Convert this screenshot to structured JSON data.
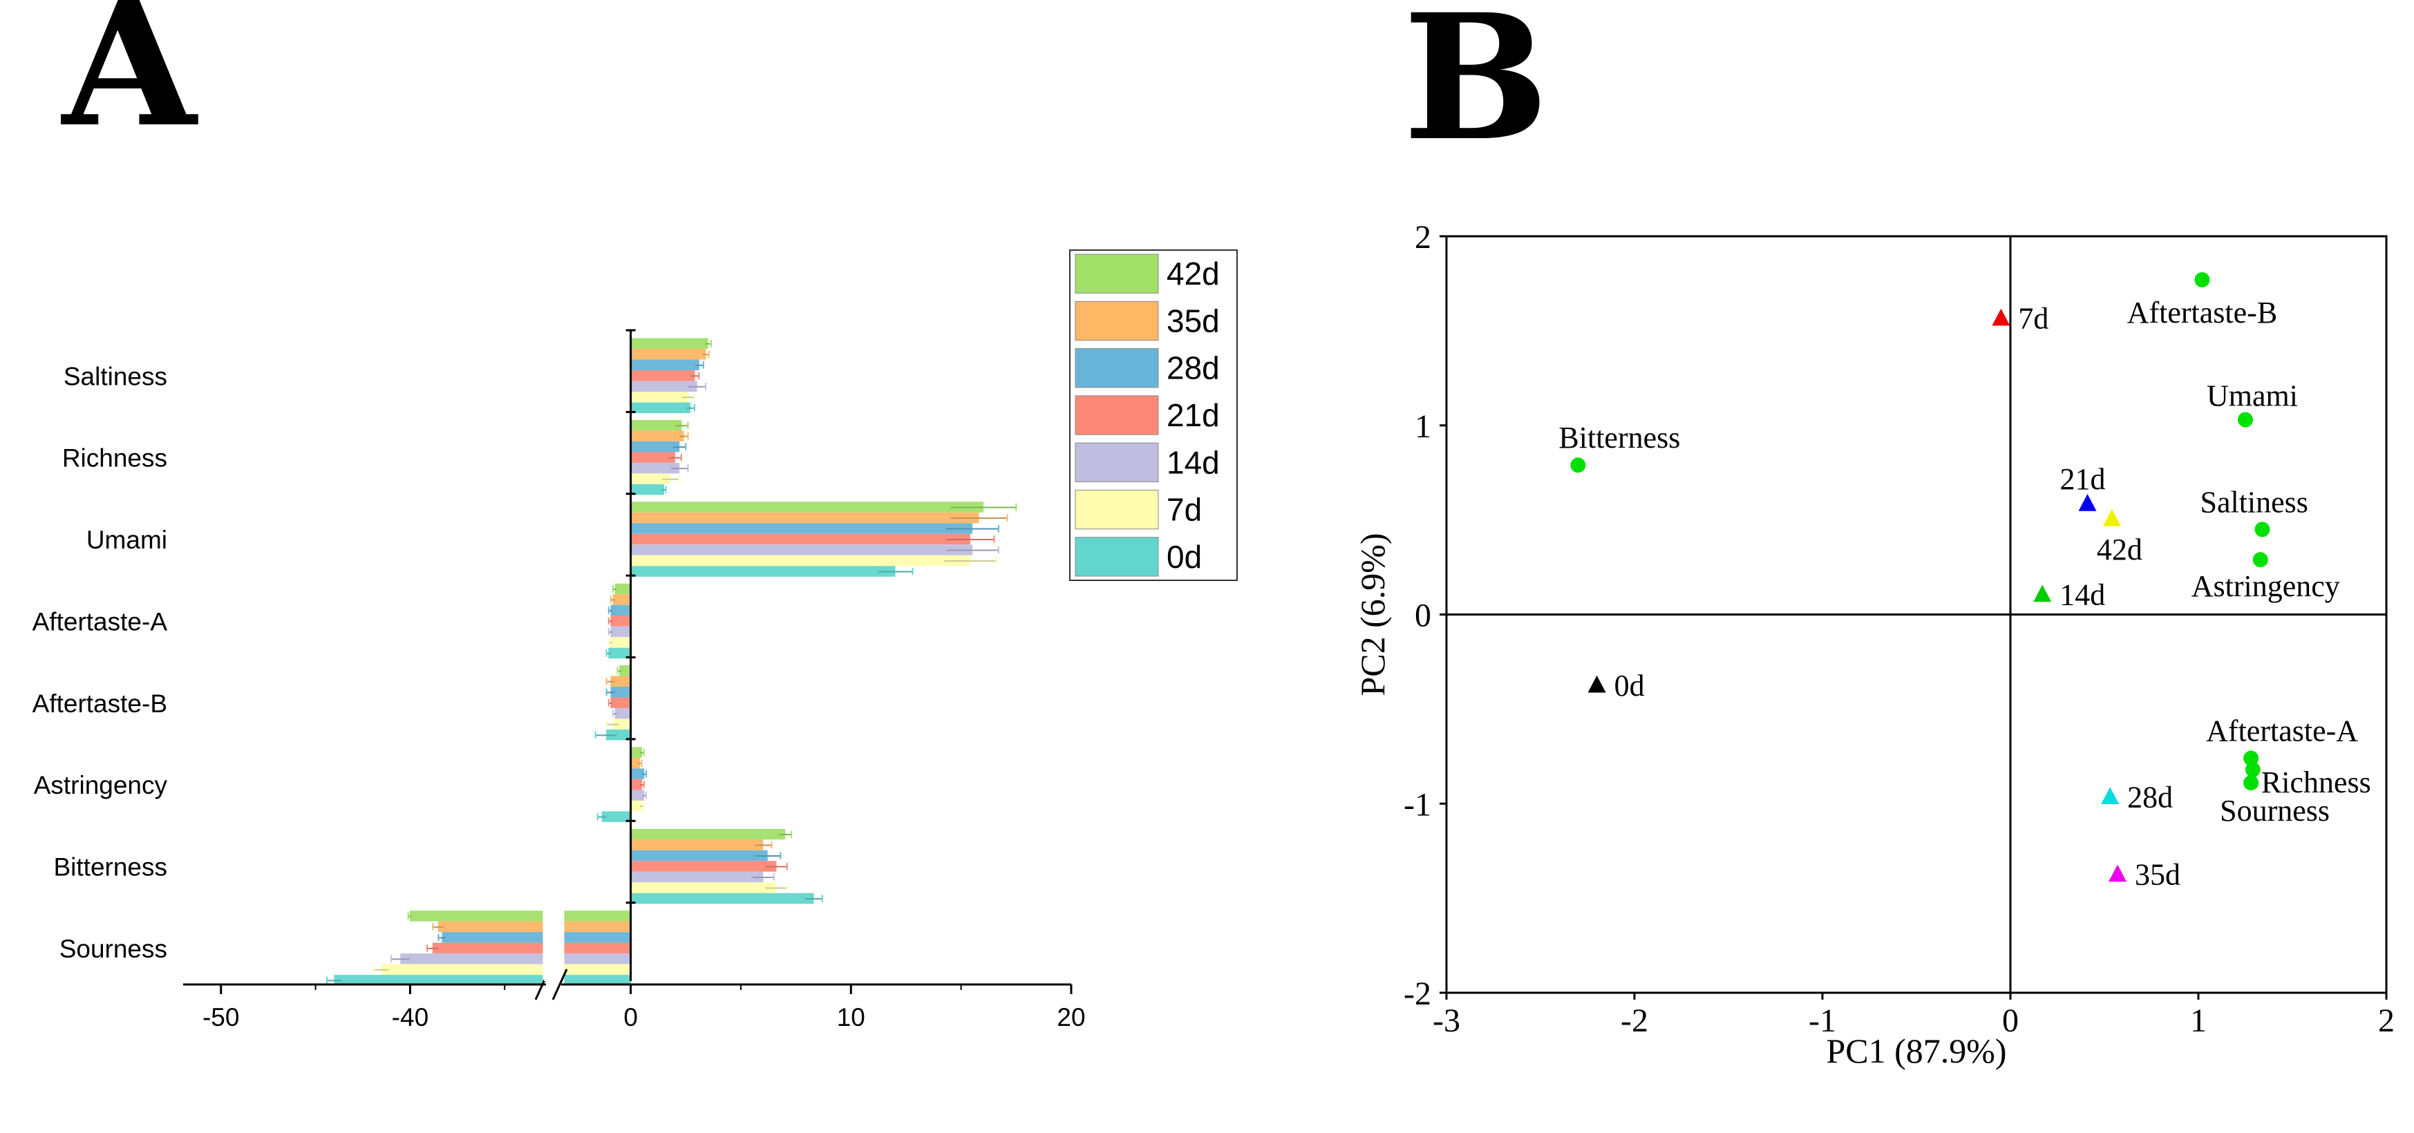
{
  "panels": {
    "a": {
      "letter": "A"
    },
    "b": {
      "letter": "B"
    }
  },
  "colors": {
    "0d": "#62d6cd",
    "7d": "#fffdb0",
    "14d": "#c0bee0",
    "21d": "#fc8878",
    "28d": "#67b5d9",
    "35d": "#fdb765",
    "42d": "#a2e06a",
    "marker_green": "#00e000"
  },
  "chart_data": [
    {
      "type": "bar",
      "orientation": "horizontal",
      "title": "",
      "categories": [
        "Saltiness",
        "Richness",
        "Umami",
        "Aftertaste-A",
        "Aftertaste-B",
        "Astringency",
        "Bitterness",
        "Sourness"
      ],
      "series": [
        {
          "name": "42d",
          "values": [
            3.5,
            2.3,
            16.0,
            -0.7,
            -0.5,
            0.5,
            7.0,
            -40.0
          ],
          "errors": [
            0.15,
            0.3,
            1.5,
            0.1,
            0.1,
            0.1,
            0.3,
            0.1
          ]
        },
        {
          "name": "35d",
          "values": [
            3.4,
            2.4,
            15.8,
            -0.8,
            -0.9,
            0.4,
            6.0,
            -38.5
          ],
          "errors": [
            0.15,
            0.2,
            1.3,
            0.1,
            0.2,
            0.1,
            0.4,
            0.3
          ]
        },
        {
          "name": "28d",
          "values": [
            3.1,
            2.2,
            15.5,
            -0.9,
            -0.9,
            0.6,
            6.2,
            -38.3
          ],
          "errors": [
            0.2,
            0.3,
            1.2,
            0.1,
            0.2,
            0.1,
            0.6,
            0.2
          ]
        },
        {
          "name": "21d",
          "values": [
            2.9,
            2.0,
            15.4,
            -0.9,
            -0.9,
            0.5,
            6.6,
            -38.8
          ],
          "errors": [
            0.2,
            0.3,
            1.1,
            0.1,
            0.1,
            0.1,
            0.5,
            0.3
          ]
        },
        {
          "name": "14d",
          "values": [
            3.0,
            2.2,
            15.5,
            -0.9,
            -0.7,
            0.6,
            6.0,
            -40.5
          ],
          "errors": [
            0.4,
            0.4,
            1.2,
            0.1,
            0.1,
            0.1,
            0.5,
            0.5
          ]
        },
        {
          "name": "7d",
          "values": [
            2.6,
            1.8,
            15.4,
            -0.9,
            -0.8,
            0.5,
            6.6,
            -41.5
          ],
          "errors": [
            0.3,
            0.4,
            1.2,
            0.1,
            0.3,
            0.1,
            0.5,
            0.4
          ]
        },
        {
          "name": "0d",
          "values": [
            2.7,
            1.5,
            12.0,
            -1.0,
            -1.1,
            -1.3,
            8.3,
            -44.0
          ],
          "errors": [
            0.2,
            0.1,
            0.8,
            0.1,
            0.5,
            0.2,
            0.4,
            0.4
          ]
        }
      ],
      "xlim": [
        -52,
        20
      ],
      "axis_break": [
        -33,
        -3
      ],
      "xticks": [
        -50,
        -40,
        0,
        10,
        20
      ],
      "xtick_labels": [
        "-50",
        "-40",
        "0",
        "10",
        "20"
      ],
      "legend": [
        "42d",
        "35d",
        "28d",
        "21d",
        "14d",
        "7d",
        "0d"
      ],
      "legend_position": "top-right",
      "xlabel": "",
      "ylabel": ""
    },
    {
      "type": "scatter",
      "title": "",
      "xlabel": "PC1 (87.9%)",
      "ylabel": "PC2 (6.9%)",
      "xlim": [
        -3,
        2
      ],
      "ylim": [
        -2,
        2
      ],
      "xticks": [
        -3,
        -2,
        -1,
        0,
        1,
        2
      ],
      "xtick_labels": [
        "-3",
        "-2",
        "-1",
        "0",
        "1",
        "2"
      ],
      "yticks": [
        -2,
        -1,
        0,
        1,
        2
      ],
      "ytick_labels": [
        "-2",
        "-1",
        "0",
        "1",
        "2"
      ],
      "samples": [
        {
          "label": "7d",
          "x": -0.05,
          "y": 1.57,
          "color": "#ee0000"
        },
        {
          "label": "21d",
          "x": 0.41,
          "y": 0.59,
          "color": "#0000ee"
        },
        {
          "label": "42d",
          "x": 0.54,
          "y": 0.51,
          "color": "#f2f200"
        },
        {
          "label": "14d",
          "x": 0.17,
          "y": 0.11,
          "color": "#00cc00"
        },
        {
          "label": "0d",
          "x": -2.2,
          "y": -0.37,
          "color": "#000000"
        },
        {
          "label": "28d",
          "x": 0.53,
          "y": -0.96,
          "color": "#00dddd"
        },
        {
          "label": "35d",
          "x": 0.57,
          "y": -1.37,
          "color": "#ee00ee"
        }
      ],
      "attributes": [
        {
          "label": "Aftertaste-B",
          "x": 1.02,
          "y": 1.77
        },
        {
          "label": "Umami",
          "x": 1.25,
          "y": 1.03
        },
        {
          "label": "Bitterness",
          "x": -2.3,
          "y": 0.79
        },
        {
          "label": "Saltiness",
          "x": 1.34,
          "y": 0.45
        },
        {
          "label": "Astringency",
          "x": 1.33,
          "y": 0.29
        },
        {
          "label": "Aftertaste-A",
          "x": 1.28,
          "y": -0.76
        },
        {
          "label": "Richness",
          "x": 1.29,
          "y": -0.82
        },
        {
          "label": "Sourness",
          "x": 1.28,
          "y": -0.89
        }
      ]
    }
  ]
}
